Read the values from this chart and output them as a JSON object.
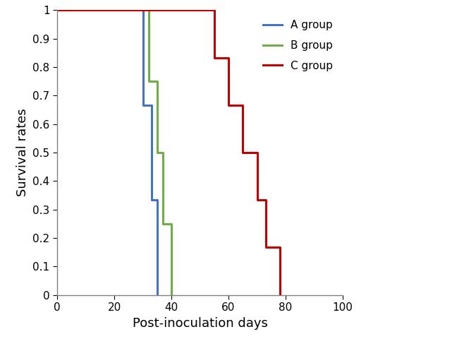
{
  "A_group": {
    "x": [
      0,
      30,
      30,
      33,
      33,
      35,
      35
    ],
    "y": [
      1,
      1,
      0.667,
      0.667,
      0.333,
      0.333,
      0
    ],
    "color": "#4472C4",
    "label": "A group"
  },
  "B_group": {
    "x": [
      0,
      32,
      32,
      35,
      35,
      37,
      37,
      40,
      40
    ],
    "y": [
      1,
      1,
      0.75,
      0.75,
      0.5,
      0.5,
      0.25,
      0.25,
      0
    ],
    "color": "#70AD47",
    "label": "B group"
  },
  "C_group": {
    "x": [
      0,
      55,
      55,
      60,
      60,
      65,
      65,
      70,
      70,
      73,
      73,
      78,
      78
    ],
    "y": [
      1,
      1,
      0.833,
      0.833,
      0.667,
      0.667,
      0.5,
      0.5,
      0.333,
      0.333,
      0.167,
      0.167,
      0
    ],
    "color": "#C00000",
    "label": "C group"
  },
  "xlabel": "Post-inoculation days",
  "ylabel": "Survival rates",
  "xlim": [
    0,
    100
  ],
  "ylim": [
    0,
    1
  ],
  "xticks": [
    0,
    20,
    40,
    60,
    80,
    100
  ],
  "yticks": [
    0,
    0.1,
    0.2,
    0.3,
    0.4,
    0.5,
    0.6,
    0.7,
    0.8,
    0.9,
    1
  ],
  "linewidth": 2.2,
  "legend_fontsize": 11,
  "axis_label_fontsize": 13,
  "tick_fontsize": 11,
  "figure_width": 6.75,
  "figure_height": 4.8,
  "figure_dpi": 100
}
